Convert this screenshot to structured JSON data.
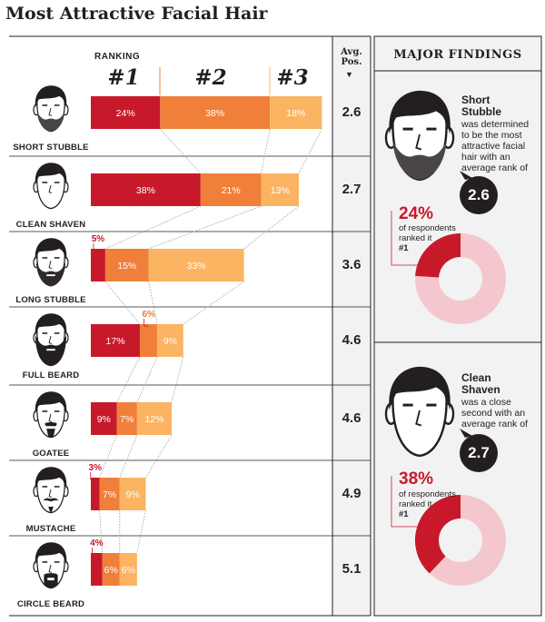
{
  "title": "Most Attractive Facial Hair",
  "headers": {
    "ranking": "RANKING",
    "rank_labels": [
      "#1",
      "#2",
      "#3"
    ],
    "avg_pos": "Avg. Pos.",
    "avg_arrow": "▼",
    "major_findings": "MAJOR FINDINGS"
  },
  "colors": {
    "rank1": "#c8192b",
    "rank2": "#f07f3a",
    "rank3": "#fbb462",
    "avg_column_bg": "#f2f2f3",
    "findings_bg": "#f2f2f3",
    "donut_light": "#f3c7cd",
    "text_dark": "#231f20"
  },
  "chart_data": {
    "type": "bar",
    "stacked": true,
    "orientation": "horizontal",
    "title": "Most Attractive Facial Hair",
    "categories": [
      "SHORT STUBBLE",
      "CLEAN SHAVEN",
      "LONG STUBBLE",
      "FULL BEARD",
      "GOATEE",
      "MUSTACHE",
      "CIRCLE BEARD"
    ],
    "series": [
      {
        "name": "#1",
        "values": [
          24,
          38,
          5,
          17,
          9,
          3,
          4
        ]
      },
      {
        "name": "#2",
        "values": [
          38,
          21,
          15,
          6,
          7,
          7,
          6
        ]
      },
      {
        "name": "#3",
        "values": [
          18,
          13,
          33,
          9,
          12,
          9,
          6
        ]
      }
    ],
    "avg_position": [
      "2.6",
      "2.7",
      "3.6",
      "4.6",
      "4.6",
      "4.9",
      "5.1"
    ],
    "labels_outside": [
      [
        false,
        false,
        false
      ],
      [
        false,
        false,
        false
      ],
      [
        true,
        false,
        false
      ],
      [
        false,
        true,
        false
      ],
      [
        false,
        false,
        false
      ],
      [
        true,
        false,
        false
      ],
      [
        true,
        false,
        false
      ]
    ]
  },
  "findings": [
    {
      "name_line1": "Short",
      "name_line2": "Stubble",
      "desc_lines": [
        "was determined",
        "to be the most",
        "attractive facial",
        "hair with an",
        "average rank of"
      ],
      "avg": "2.6",
      "pct": "24%",
      "pct_desc_lines": [
        "of respondents",
        "ranked it"
      ],
      "pct_rank": "#1",
      "donut_value": 24
    },
    {
      "name_line1": "Clean",
      "name_line2": "Shaven",
      "desc_lines": [
        "was a close",
        "second with an",
        "average rank of"
      ],
      "avg": "2.7",
      "pct": "38%",
      "pct_desc_lines": [
        "of respondents",
        "ranked it"
      ],
      "pct_rank": "#1",
      "donut_value": 38
    }
  ]
}
